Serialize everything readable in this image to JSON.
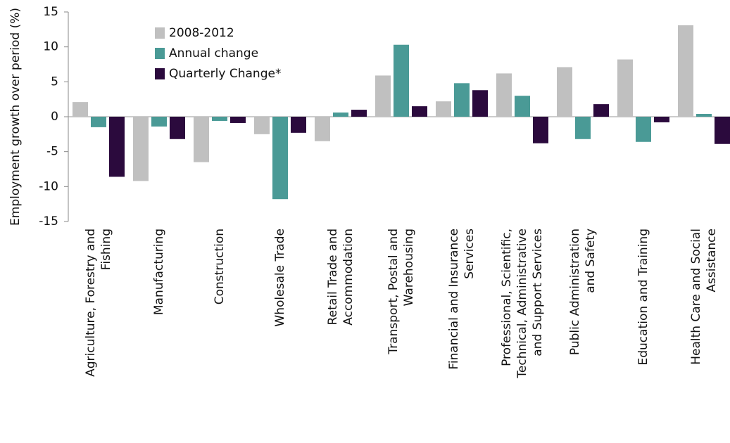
{
  "chart_data": {
    "type": "bar",
    "y_label": "Employment growth over period (%)",
    "categories": [
      "Agriculture, Forestry and\nFishing",
      "Manufacturing",
      "Construction",
      "Wholesale Trade",
      "Retail Trade and\nAccommodation",
      "Transport, Postal and\nWarehousing",
      "Financial and Insurance\nServices",
      "Professional, Scientific,\nTechnical, Administrative\nand Support Services",
      "Public Administration\nand Safety",
      "Education and Training",
      "Health Care and Social\nAssistance"
    ],
    "series": [
      {
        "name": "2008-2012",
        "color": "#c0c0c0",
        "values": [
          2.1,
          -9.2,
          -6.5,
          -2.5,
          -3.5,
          5.9,
          2.2,
          6.2,
          7.1,
          8.2,
          13.1
        ]
      },
      {
        "name": "Annual change",
        "color": "#4a9a96",
        "values": [
          -1.5,
          -1.4,
          -0.6,
          -11.8,
          0.6,
          10.3,
          4.8,
          3.0,
          -3.2,
          -3.6,
          0.4
        ]
      },
      {
        "name": "Quarterly Change*",
        "color": "#2b0a3d",
        "values": [
          -8.6,
          -3.2,
          -0.9,
          -2.3,
          1.0,
          1.5,
          3.8,
          -3.8,
          1.8,
          -0.8,
          -3.9
        ]
      }
    ],
    "ylim": [
      -15,
      15
    ],
    "yticks": [
      -15,
      -10,
      -5,
      0,
      5,
      10,
      15
    ],
    "legend": "top-left"
  }
}
